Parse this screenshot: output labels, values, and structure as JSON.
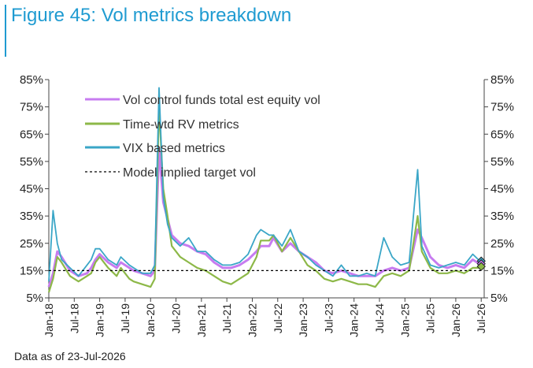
{
  "header": {
    "title": "Figure 45: Vol metrics breakdown"
  },
  "footnote": "Data as of 23-Jul-2026",
  "colors": {
    "accent": "#1f9bd1",
    "vol_control": "#c77cf0",
    "rv": "#8db848",
    "vix": "#3aa6c7",
    "target": "#000000"
  },
  "chart_data": {
    "type": "line",
    "title": "",
    "xlabel": "",
    "ylabel": "",
    "y_unit": "%",
    "ylim": [
      5,
      85
    ],
    "y_ticks": [
      "85%",
      "75%",
      "65%",
      "55%",
      "45%",
      "35%",
      "25%",
      "15%",
      "5%"
    ],
    "right_axis_mirrors_left": true,
    "x_tick_labels": [
      "Jan-18",
      "Jul-18",
      "Jan-19",
      "Jul-19",
      "Jan-20",
      "Jul-20",
      "Jan-21",
      "Jul-21",
      "Jan-22",
      "Jul-22",
      "Jan-23",
      "Jul-23",
      "Jan-24",
      "Jul-24",
      "Jan-25",
      "Jul-25",
      "Jan-26",
      "Jul-26"
    ],
    "x_tick_dates": [
      "2018-01",
      "2018-07",
      "2019-01",
      "2019-07",
      "2020-01",
      "2020-07",
      "2021-01",
      "2021-07",
      "2022-01",
      "2022-07",
      "2023-01",
      "2023-07",
      "2024-01",
      "2024-07",
      "2025-01",
      "2025-07",
      "2026-01",
      "2026-07"
    ],
    "grid": false,
    "legend_position": "top-left",
    "series": [
      {
        "name": "Vol control funds total est equity vol",
        "style": "line",
        "x": [
          "2018-01",
          "2018-02",
          "2018-03",
          "2018-04",
          "2018-06",
          "2018-08",
          "2018-10",
          "2018-11",
          "2018-12",
          "2019-01",
          "2019-03",
          "2019-05",
          "2019-06",
          "2019-08",
          "2019-09",
          "2019-11",
          "2020-01",
          "2020-02",
          "2020-03",
          "2020-04",
          "2020-05",
          "2020-06",
          "2020-08",
          "2020-10",
          "2020-12",
          "2021-02",
          "2021-04",
          "2021-06",
          "2021-08",
          "2021-10",
          "2021-12",
          "2022-02",
          "2022-03",
          "2022-05",
          "2022-06",
          "2022-08",
          "2022-10",
          "2022-12",
          "2023-02",
          "2023-04",
          "2023-06",
          "2023-08",
          "2023-10",
          "2023-12",
          "2024-02",
          "2024-04",
          "2024-06",
          "2024-08",
          "2024-10",
          "2024-12",
          "2025-02",
          "2025-04",
          "2025-05",
          "2025-07",
          "2025-09",
          "2025-11",
          "2026-01",
          "2026-03",
          "2026-05",
          "2026-07"
        ],
        "values": [
          9,
          14,
          22,
          20,
          15,
          13,
          14,
          16,
          19,
          21,
          18,
          16,
          18,
          16,
          15,
          14,
          13,
          15,
          60,
          40,
          34,
          28,
          25,
          24,
          22,
          21,
          18,
          16,
          16,
          17,
          19,
          22,
          24,
          24,
          27,
          22,
          25,
          22,
          20,
          18,
          15,
          14,
          15,
          14,
          13,
          13,
          13,
          15,
          16,
          15,
          16,
          30,
          27,
          20,
          17,
          16,
          17,
          16,
          19,
          17
        ]
      },
      {
        "name": "Time-wtd RV metrics",
        "style": "line",
        "x": [
          "2018-01",
          "2018-02",
          "2018-03",
          "2018-04",
          "2018-06",
          "2018-08",
          "2018-10",
          "2018-11",
          "2018-12",
          "2019-01",
          "2019-03",
          "2019-05",
          "2019-06",
          "2019-08",
          "2019-09",
          "2019-11",
          "2020-01",
          "2020-02",
          "2020-03",
          "2020-04",
          "2020-05",
          "2020-06",
          "2020-08",
          "2020-10",
          "2020-12",
          "2021-02",
          "2021-04",
          "2021-06",
          "2021-08",
          "2021-10",
          "2021-12",
          "2022-02",
          "2022-03",
          "2022-05",
          "2022-06",
          "2022-08",
          "2022-10",
          "2022-12",
          "2023-02",
          "2023-04",
          "2023-06",
          "2023-08",
          "2023-10",
          "2023-12",
          "2024-02",
          "2024-04",
          "2024-06",
          "2024-08",
          "2024-10",
          "2024-12",
          "2025-02",
          "2025-04",
          "2025-05",
          "2025-07",
          "2025-09",
          "2025-11",
          "2026-01",
          "2026-03",
          "2026-05",
          "2026-07"
        ],
        "values": [
          7,
          12,
          20,
          18,
          13,
          11,
          13,
          14,
          18,
          20,
          16,
          13,
          16,
          12,
          11,
          10,
          9,
          12,
          75,
          45,
          35,
          24,
          20,
          18,
          16,
          15,
          13,
          11,
          10,
          12,
          14,
          20,
          26,
          26,
          28,
          22,
          27,
          22,
          17,
          15,
          12,
          11,
          12,
          11,
          10,
          10,
          9,
          13,
          14,
          13,
          15,
          35,
          22,
          16,
          14,
          14,
          15,
          14,
          16,
          16
        ]
      },
      {
        "name": "VIX based metrics",
        "style": "line",
        "x": [
          "2018-01",
          "2018-02",
          "2018-03",
          "2018-04",
          "2018-06",
          "2018-08",
          "2018-10",
          "2018-11",
          "2018-12",
          "2019-01",
          "2019-03",
          "2019-05",
          "2019-06",
          "2019-08",
          "2019-09",
          "2019-11",
          "2020-01",
          "2020-02",
          "2020-03",
          "2020-04",
          "2020-05",
          "2020-06",
          "2020-08",
          "2020-10",
          "2020-12",
          "2021-02",
          "2021-04",
          "2021-06",
          "2021-08",
          "2021-10",
          "2021-12",
          "2022-02",
          "2022-03",
          "2022-05",
          "2022-06",
          "2022-08",
          "2022-10",
          "2022-12",
          "2023-02",
          "2023-04",
          "2023-06",
          "2023-08",
          "2023-10",
          "2023-12",
          "2024-02",
          "2024-04",
          "2024-06",
          "2024-08",
          "2024-10",
          "2024-12",
          "2025-02",
          "2025-04",
          "2025-05",
          "2025-07",
          "2025-09",
          "2025-11",
          "2026-01",
          "2026-03",
          "2026-05",
          "2026-07"
        ],
        "values": [
          11,
          37,
          25,
          19,
          16,
          13,
          17,
          19,
          23,
          23,
          19,
          17,
          20,
          17,
          16,
          14,
          14,
          17,
          82,
          42,
          32,
          27,
          24,
          27,
          22,
          22,
          19,
          17,
          17,
          18,
          21,
          28,
          30,
          28,
          28,
          24,
          30,
          22,
          20,
          17,
          15,
          13,
          17,
          13,
          13,
          14,
          13,
          27,
          20,
          17,
          18,
          52,
          24,
          17,
          16,
          17,
          18,
          17,
          21,
          18
        ]
      },
      {
        "name": "Model implied target vol",
        "style": "dashed",
        "x": [
          "2018-01",
          "2026-07"
        ],
        "values": [
          15,
          15
        ]
      }
    ],
    "latest_markers": [
      {
        "series": "VIX based metrics",
        "x": "2026-07",
        "value": 18.5
      },
      {
        "series": "Vol control funds total est equity vol",
        "x": "2026-07",
        "value": 17.5
      },
      {
        "series": "Time-wtd RV metrics",
        "x": "2026-07",
        "value": 16.5
      }
    ]
  }
}
